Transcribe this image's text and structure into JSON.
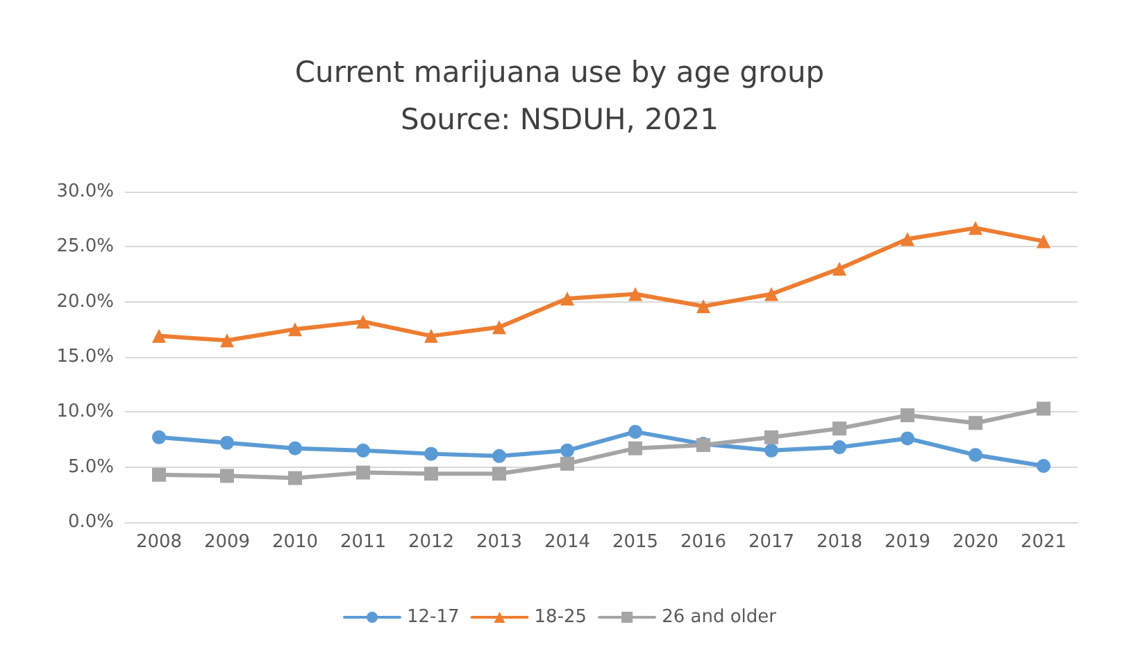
{
  "chart_data": {
    "type": "line",
    "title": "Current marijuana use by age group\nSource: NSDUH, 2021",
    "categories": [
      "2008",
      "2009",
      "2010",
      "2011",
      "2012",
      "2013",
      "2014",
      "2015",
      "2016",
      "2017",
      "2018",
      "2019",
      "2020",
      "2021"
    ],
    "series": [
      {
        "name": "12-17",
        "color": "#5b9bd5",
        "marker": "circle",
        "values": [
          7.7,
          7.2,
          6.7,
          6.5,
          6.2,
          6.0,
          6.5,
          8.2,
          7.1,
          6.5,
          6.8,
          7.6,
          6.1,
          5.1
        ]
      },
      {
        "name": "18-25",
        "color": "#ed7d31",
        "marker": "triangle",
        "values": [
          16.9,
          16.5,
          17.5,
          18.2,
          16.9,
          17.7,
          20.3,
          20.7,
          19.6,
          20.7,
          23.0,
          25.7,
          26.7,
          25.5
        ]
      },
      {
        "name": "26 and older",
        "color": "#a5a5a5",
        "marker": "square",
        "values": [
          4.3,
          4.2,
          4.0,
          4.5,
          4.4,
          4.4,
          5.3,
          6.7,
          7.0,
          7.7,
          8.5,
          9.7,
          9.0,
          10.3
        ]
      }
    ],
    "ylim": [
      0,
      30
    ],
    "yticks": [
      {
        "value": 0,
        "label": "0.0%"
      },
      {
        "value": 5,
        "label": "5.0%"
      },
      {
        "value": 10,
        "label": "10.0%"
      },
      {
        "value": 15,
        "label": "15.0%"
      },
      {
        "value": 20,
        "label": "20.0%"
      },
      {
        "value": 25,
        "label": "25.0%"
      },
      {
        "value": 30,
        "label": "30.0%"
      }
    ],
    "grid": "y",
    "legend": "bottom",
    "line_style": "solid"
  }
}
